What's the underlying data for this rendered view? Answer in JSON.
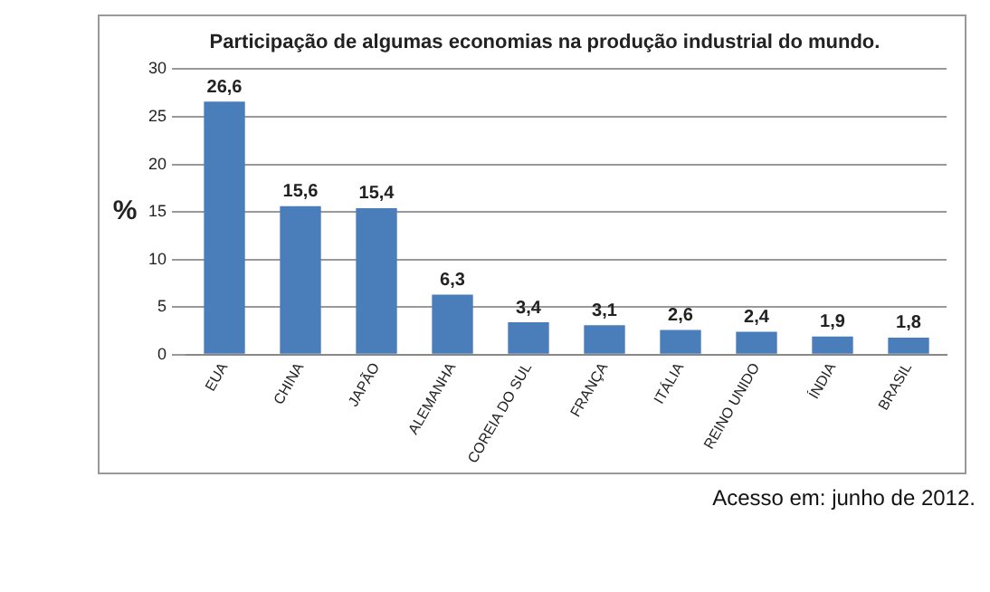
{
  "chart_data": {
    "type": "bar",
    "title": "Participação de algumas economias na produção industrial do mundo.",
    "ylabel": "%",
    "categories": [
      "EUA",
      "CHINA",
      "JAPÃO",
      "ALEMANHA",
      "COREIA DO SUL",
      "FRANÇA",
      "ITÁLIA",
      "REINO UNIDO",
      "ÍNDIA",
      "BRASIL"
    ],
    "values": [
      26.6,
      15.6,
      15.4,
      6.3,
      3.4,
      3.1,
      2.6,
      2.4,
      1.9,
      1.8
    ],
    "value_labels": [
      "26,6",
      "15,6",
      "15,4",
      "6,3",
      "3,4",
      "3,1",
      "2,6",
      "2,4",
      "1,9",
      "1,8"
    ],
    "color": "#4a7ebb",
    "ylim": [
      0,
      30
    ],
    "yticks": [
      0,
      5,
      10,
      15,
      20,
      25,
      30
    ],
    "grid": "y",
    "annotations": [
      "Acesso em: junho de 2012."
    ]
  }
}
